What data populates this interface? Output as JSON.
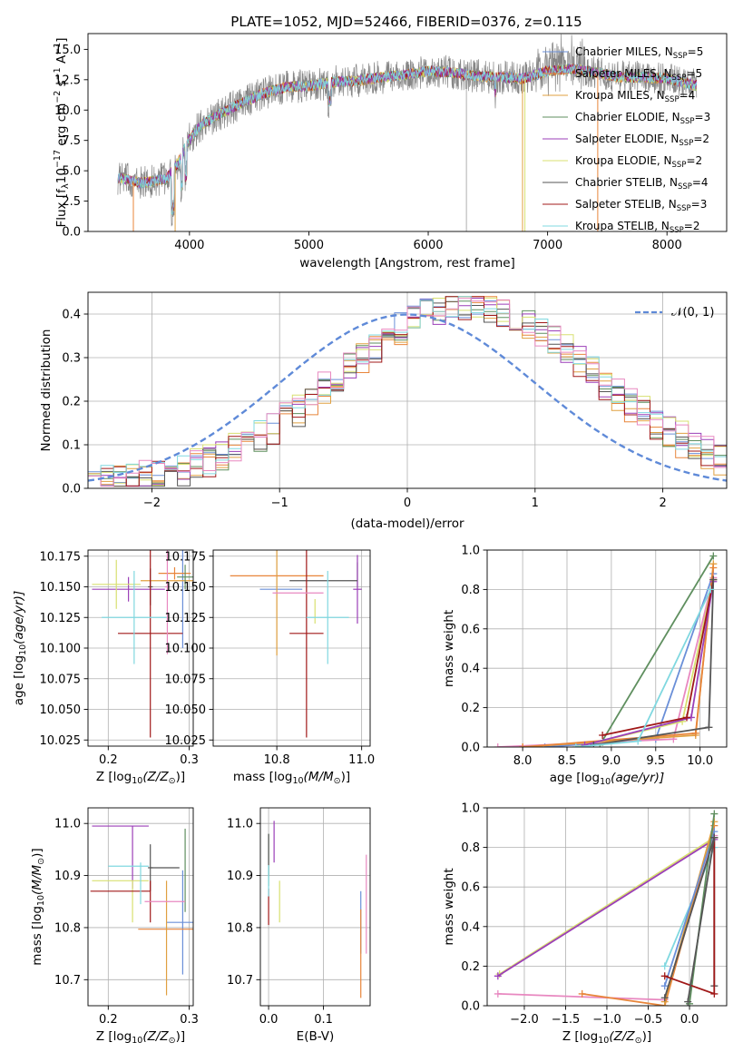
{
  "colors": {
    "chabrier_miles": "#6a8fd8",
    "salpeter_miles": "#e8853a",
    "kroupa_miles": "#e0a040",
    "chabrier_elodie": "#5f8f5f",
    "salpeter_elodie": "#9b3fb8",
    "kroupa_elodie": "#d8e070",
    "chabrier_stelib": "#555555",
    "salpeter_stelib": "#a01818",
    "kroupa_stelib": "#80d8e0",
    "pink": "#e888c0",
    "normal": "#5f8ad8",
    "spectrum_data": "#808080"
  },
  "chart_data": [
    {
      "id": "spectrum",
      "type": "line",
      "title": "PLATE=1052, MJD=52466, FIBERID=0376, z=0.115",
      "xlabel": "wavelength [Angstrom, rest frame]",
      "ylabel": "Flux [f",
      "ylabel_parts": [
        "λ",
        "10",
        "−17",
        " erg cm",
        "−2",
        " s",
        "−1",
        " A",
        "−1",
        "]"
      ],
      "xlim": [
        3150,
        8500
      ],
      "ylim": [
        0,
        16.3
      ],
      "xticks": [
        4000,
        5000,
        6000,
        7000,
        8000
      ],
      "yticks": [
        "0.0",
        "2.5",
        "5.0",
        "7.5",
        "10.0",
        "12.5",
        "15.0"
      ],
      "grid": false,
      "legend_position": "top-right",
      "series": [
        {
          "name": "Chabrier MILES, N",
          "sub": "SSP",
          "suffix": "=5"
        },
        {
          "name": "Salpeter MILES, N",
          "sub": "SSP",
          "suffix": "=5"
        },
        {
          "name": "Kroupa MILES, N",
          "sub": "SSP",
          "suffix": "=4"
        },
        {
          "name": "Chabrier ELODIE, N",
          "sub": "SSP",
          "suffix": "=3"
        },
        {
          "name": "Salpeter ELODIE, N",
          "sub": "SSP",
          "suffix": "=2"
        },
        {
          "name": "Kroupa ELODIE, N",
          "sub": "SSP",
          "suffix": "=2"
        },
        {
          "name": "Chabrier STELIB, N",
          "sub": "SSP",
          "suffix": "=4"
        },
        {
          "name": "Salpeter STELIB, N",
          "sub": "SSP",
          "suffix": "=3"
        },
        {
          "name": "Kroupa STELIB, N",
          "sub": "SSP",
          "suffix": "=2"
        }
      ],
      "trend": {
        "x": [
          3400,
          3600,
          3800,
          3900,
          4000,
          4100,
          4200,
          4400,
          4600,
          4800,
          5000,
          5200,
          5400,
          5600,
          5800,
          6000,
          6200,
          6400,
          6600,
          6800,
          7000,
          7200,
          7400,
          7600,
          7800,
          8000,
          8250
        ],
        "y": [
          4.4,
          4.0,
          4.3,
          5.6,
          7.6,
          8.8,
          9.4,
          10.4,
          11.3,
          11.9,
          12.0,
          12.3,
          12.4,
          12.7,
          12.9,
          13.2,
          13.1,
          12.8,
          12.7,
          12.6,
          13.2,
          13.4,
          13.1,
          12.7,
          12.7,
          12.6,
          12.0
        ]
      }
    },
    {
      "id": "residuals",
      "type": "line",
      "xlabel": "(data-model)/error",
      "ylabel": "Normed distribution",
      "xlim": [
        -2.5,
        2.5
      ],
      "ylim": [
        0,
        0.45
      ],
      "xticks": [
        "−2",
        "−1",
        "0",
        "1",
        "2"
      ],
      "yticks": [
        "0.0",
        "0.1",
        "0.2",
        "0.3",
        "0.4"
      ],
      "grid": true,
      "legend_position": "top-right",
      "reference": {
        "name": "𝒩(0, 1)",
        "mean": 0,
        "sigma": 1
      }
    },
    {
      "id": "age_vs_Z",
      "type": "scatter",
      "xlabel": "Z [log",
      "xlabel_parts": [
        "10",
        "(Z/Z",
        "⊙",
        ")]"
      ],
      "ylabel": "age  [log",
      "ylabel_parts": [
        "10",
        "(age/yr)]"
      ],
      "xlim": [
        0.175,
        0.305
      ],
      "ylim": [
        10.02,
        10.18
      ],
      "xticks": [
        "0.2",
        "0.3"
      ],
      "yticks": [
        "10.025",
        "10.050",
        "10.075",
        "10.100",
        "10.125",
        "10.150",
        "10.175"
      ],
      "grid": true,
      "points": [
        {
          "x": 0.292,
          "y": 10.14,
          "xe": 0.0,
          "ye": 0.04,
          "c": "chabrier_miles"
        },
        {
          "x": 0.282,
          "y": 10.161,
          "xe": 0.02,
          "ye": 0.005,
          "c": "salpeter_miles"
        },
        {
          "x": 0.275,
          "y": 10.155,
          "xe": 0.035,
          "ye": 0.0,
          "c": "kroupa_miles"
        },
        {
          "x": 0.295,
          "y": 10.158,
          "xe": 0.01,
          "ye": 0.01,
          "c": "chabrier_elodie"
        },
        {
          "x": 0.225,
          "y": 10.148,
          "xe": 0.045,
          "ye": 0.01,
          "c": "salpeter_elodie"
        },
        {
          "x": 0.21,
          "y": 10.152,
          "xe": 0.03,
          "ye": 0.02,
          "c": "kroupa_elodie"
        },
        {
          "x": 0.252,
          "y": 10.15,
          "xe": 0.003,
          "ye": 0.015,
          "c": "chabrier_stelib"
        },
        {
          "x": 0.252,
          "y": 10.112,
          "xe": 0.04,
          "ye": 0.085,
          "c": "salpeter_stelib"
        },
        {
          "x": 0.232,
          "y": 10.125,
          "xe": 0.04,
          "ye": 0.038,
          "c": "kroupa_stelib"
        },
        {
          "x": 0.273,
          "y": 10.15,
          "xe": 0.003,
          "ye": 0.055,
          "c": "pink"
        }
      ]
    },
    {
      "id": "age_vs_mass",
      "type": "scatter",
      "xlabel": "mass [log",
      "xlabel_parts": [
        "10",
        "(M/M",
        "⊙",
        ")]"
      ],
      "ylabel": "",
      "xlim": [
        10.65,
        11.02
      ],
      "ylim": [
        10.02,
        10.18
      ],
      "xticks": [
        "10.8",
        "11.0"
      ],
      "yticks": [
        "10.025",
        "10.050",
        "10.075",
        "10.100",
        "10.125",
        "10.150",
        "10.175"
      ],
      "grid": true,
      "points": [
        {
          "x": 10.81,
          "y": 10.148,
          "xe": 0.05,
          "ye": 0.0,
          "c": "chabrier_miles"
        },
        {
          "x": 10.8,
          "y": 10.159,
          "xe": 0.11,
          "ye": 0.0,
          "c": "salpeter_miles"
        },
        {
          "x": 10.8,
          "y": 10.152,
          "xe": 0.0,
          "ye": 0.058,
          "c": "kroupa_miles"
        },
        {
          "x": 10.99,
          "y": 10.16,
          "xe": 0.0,
          "ye": 0.01,
          "c": "chabrier_elodie"
        },
        {
          "x": 10.99,
          "y": 10.148,
          "xe": 0.01,
          "ye": 0.028,
          "c": "salpeter_elodie"
        },
        {
          "x": 10.89,
          "y": 10.13,
          "xe": 0.0,
          "ye": 0.01,
          "c": "kroupa_elodie"
        },
        {
          "x": 10.91,
          "y": 10.155,
          "xe": 0.08,
          "ye": 0.0,
          "c": "chabrier_stelib"
        },
        {
          "x": 10.87,
          "y": 10.112,
          "xe": 0.04,
          "ye": 0.085,
          "c": "salpeter_stelib"
        },
        {
          "x": 10.92,
          "y": 10.125,
          "xe": 0.05,
          "ye": 0.038,
          "c": "kroupa_stelib"
        },
        {
          "x": 10.85,
          "y": 10.145,
          "xe": 0.06,
          "ye": 0.0,
          "c": "pink"
        }
      ]
    },
    {
      "id": "mass_weight_vs_age",
      "type": "line",
      "xlabel": "age  [log",
      "xlabel_parts": [
        "10",
        "(age/yr)]"
      ],
      "ylabel": "mass weight",
      "xlim": [
        7.6,
        10.3
      ],
      "ylim": [
        0,
        1.0
      ],
      "xticks": [
        "8.0",
        "8.5",
        "9.0",
        "9.5",
        "10.0"
      ],
      "yticks": [
        "0.0",
        "0.2",
        "0.4",
        "0.6",
        "0.8",
        "1.0"
      ],
      "grid": true,
      "series": [
        {
          "c": "chabrier_elodie",
          "x": [
            8.87,
            10.15
          ],
          "y": [
            0.01,
            0.97
          ]
        },
        {
          "c": "chabrier_miles",
          "x": [
            8.25,
            9.5,
            10.15
          ],
          "y": [
            0.0,
            0.04,
            0.88
          ]
        },
        {
          "c": "pink",
          "x": [
            7.72,
            9.7,
            10.15
          ],
          "y": [
            0.0,
            0.04,
            0.86
          ]
        },
        {
          "c": "kroupa_miles",
          "x": [
            8.0,
            9.95,
            10.15
          ],
          "y": [
            0.0,
            0.06,
            0.93
          ]
        },
        {
          "c": "salpeter_miles",
          "x": [
            8.0,
            9.95,
            10.15
          ],
          "y": [
            0.0,
            0.07,
            0.91
          ]
        },
        {
          "c": "kroupa_elodie",
          "x": [
            8.6,
            9.8,
            10.15
          ],
          "y": [
            0.0,
            0.13,
            0.85
          ]
        },
        {
          "c": "salpeter_elodie",
          "x": [
            8.7,
            9.9,
            10.15
          ],
          "y": [
            0.01,
            0.15,
            0.84
          ]
        },
        {
          "c": "salpeter_stelib",
          "x": [
            8.9,
            9.85,
            10.15
          ],
          "y": [
            0.06,
            0.15,
            0.85
          ]
        },
        {
          "c": "chabrier_stelib",
          "x": [
            8.8,
            10.1,
            10.15
          ],
          "y": [
            0.01,
            0.1,
            0.85
          ]
        },
        {
          "c": "kroupa_stelib",
          "x": [
            8.6,
            9.3,
            10.12
          ],
          "y": [
            0.0,
            0.03,
            0.8
          ]
        }
      ]
    },
    {
      "id": "mass_vs_Z",
      "type": "scatter",
      "xlabel": "Z [log",
      "xlabel_parts": [
        "10",
        "(Z/Z",
        "⊙",
        ")]"
      ],
      "ylabel": "mass [log",
      "ylabel_parts": [
        "10",
        "(M/M",
        "⊙",
        ")]"
      ],
      "xlim": [
        0.175,
        0.305
      ],
      "ylim": [
        10.65,
        11.03
      ],
      "xticks": [
        "0.2",
        "0.3"
      ],
      "yticks": [
        "10.7",
        "10.8",
        "10.9",
        "11.0"
      ],
      "grid": true,
      "points": [
        {
          "x": 0.292,
          "y": 10.81,
          "xe": 0.02,
          "ye": 0.1,
          "c": "chabrier_miles"
        },
        {
          "x": 0.272,
          "y": 10.797,
          "xe": 0.035,
          "ye": 0.0,
          "c": "salpeter_miles"
        },
        {
          "x": 0.272,
          "y": 10.78,
          "xe": 0.0,
          "ye": 0.11,
          "c": "kroupa_miles"
        },
        {
          "x": 0.295,
          "y": 10.91,
          "xe": 0.0,
          "ye": 0.08,
          "c": "chabrier_elodie"
        },
        {
          "x": 0.215,
          "y": 10.995,
          "xe": 0.035,
          "ye": 0.0,
          "c": "salpeter_elodie"
        },
        {
          "x": 0.23,
          "y": 10.935,
          "xe": 0.0,
          "ye": 0.06,
          "c": "salpeter_elodie"
        },
        {
          "x": 0.215,
          "y": 10.89,
          "xe": 0.035,
          "ye": 0.0,
          "c": "kroupa_elodie"
        },
        {
          "x": 0.23,
          "y": 10.85,
          "xe": 0.0,
          "ye": 0.04,
          "c": "kroupa_elodie"
        },
        {
          "x": 0.27,
          "y": 10.915,
          "xe": 0.018,
          "ye": 0.0,
          "c": "chabrier_stelib"
        },
        {
          "x": 0.252,
          "y": 10.915,
          "xe": 0.003,
          "ye": 0.045,
          "c": "chabrier_stelib"
        },
        {
          "x": 0.215,
          "y": 10.87,
          "xe": 0.037,
          "ye": 0.0,
          "c": "salpeter_stelib"
        },
        {
          "x": 0.252,
          "y": 10.85,
          "xe": 0.0,
          "ye": 0.04,
          "c": "salpeter_stelib"
        },
        {
          "x": 0.225,
          "y": 10.918,
          "xe": 0.025,
          "ye": 0.0,
          "c": "kroupa_stelib"
        },
        {
          "x": 0.24,
          "y": 10.885,
          "xe": 0.0,
          "ye": 0.04,
          "c": "kroupa_stelib"
        },
        {
          "x": 0.27,
          "y": 10.85,
          "xe": 0.025,
          "ye": 0.0,
          "c": "pink"
        }
      ]
    },
    {
      "id": "mass_vs_EBV",
      "type": "scatter",
      "xlabel": "E(B-V)",
      "ylabel": "",
      "xlim": [
        -0.015,
        0.185
      ],
      "ylim": [
        10.65,
        11.03
      ],
      "xticks": [
        "0.0",
        "0.1"
      ],
      "yticks": [
        "10.7",
        "10.8",
        "10.9",
        "11.0"
      ],
      "grid": true,
      "points": [
        {
          "x": 0.168,
          "y": 10.81,
          "xe": 0.0,
          "ye": 0.06,
          "c": "chabrier_miles"
        },
        {
          "x": 0.168,
          "y": 10.75,
          "xe": 0.0,
          "ye": 0.085,
          "c": "salpeter_miles"
        },
        {
          "x": 0.0,
          "y": 10.93,
          "xe": 0.0,
          "ye": 0.05,
          "c": "chabrier_elodie"
        },
        {
          "x": 0.01,
          "y": 10.965,
          "xe": 0.0,
          "ye": 0.04,
          "c": "salpeter_elodie"
        },
        {
          "x": 0.02,
          "y": 10.85,
          "xe": 0.0,
          "ye": 0.04,
          "c": "kroupa_elodie"
        },
        {
          "x": 0.0,
          "y": 10.94,
          "xe": 0.0,
          "ye": 0.04,
          "c": "chabrier_stelib"
        },
        {
          "x": 0.0,
          "y": 10.84,
          "xe": 0.0,
          "ye": 0.035,
          "c": "salpeter_stelib"
        },
        {
          "x": 0.0,
          "y": 10.89,
          "xe": 0.0,
          "ye": 0.03,
          "c": "kroupa_stelib"
        },
        {
          "x": 0.178,
          "y": 10.845,
          "xe": 0.0,
          "ye": 0.095,
          "c": "pink"
        }
      ]
    },
    {
      "id": "mass_weight_vs_Z",
      "type": "line",
      "xlabel": "Z [log",
      "xlabel_parts": [
        "10",
        "(Z/Z",
        "⊙",
        ")]"
      ],
      "ylabel": "mass weight",
      "xlim": [
        -2.45,
        0.45
      ],
      "ylim": [
        0,
        1.0
      ],
      "xticks": [
        "−2.0",
        "−1.5",
        "−1.0",
        "−0.5",
        "0.0"
      ],
      "yticks": [
        "0.0",
        "0.2",
        "0.4",
        "0.6",
        "0.8",
        "1.0"
      ],
      "grid": true,
      "series": [
        {
          "c": "kroupa_elodie",
          "x": [
            -2.3,
            0.3
          ],
          "y": [
            0.16,
            0.85
          ]
        },
        {
          "c": "salpeter_elodie",
          "x": [
            -2.32,
            0.3
          ],
          "y": [
            0.15,
            0.84
          ]
        },
        {
          "c": "kroupa_stelib",
          "x": [
            -0.3,
            0.3
          ],
          "y": [
            0.2,
            0.8
          ]
        },
        {
          "c": "pink",
          "x": [
            -2.32,
            -0.3,
            0.3
          ],
          "y": [
            0.06,
            0.03,
            0.86
          ]
        },
        {
          "c": "salpeter_miles",
          "x": [
            -1.3,
            -0.3,
            0.3
          ],
          "y": [
            0.06,
            0.0,
            0.91
          ]
        },
        {
          "c": "kroupa_miles",
          "x": [
            -0.3,
            0.3
          ],
          "y": [
            0.02,
            0.93
          ]
        },
        {
          "c": "chabrier_miles",
          "x": [
            -0.3,
            0.3
          ],
          "y": [
            0.1,
            0.88
          ]
        },
        {
          "c": "chabrier_elodie",
          "x": [
            0.0,
            0.3
          ],
          "y": [
            0.01,
            0.97
          ]
        },
        {
          "c": "chabrier_stelib",
          "x": [
            -0.3,
            0.3,
            0.3
          ],
          "y": [
            0.04,
            0.85,
            0.1
          ]
        },
        {
          "c": "salpeter_stelib",
          "x": [
            -0.3,
            0.3,
            0.3
          ],
          "y": [
            0.15,
            0.06,
            0.85
          ]
        },
        {
          "c": "chabrier_stelib",
          "x": [
            -0.02,
            0.3
          ],
          "y": [
            0.02,
            0.85
          ]
        }
      ]
    }
  ]
}
